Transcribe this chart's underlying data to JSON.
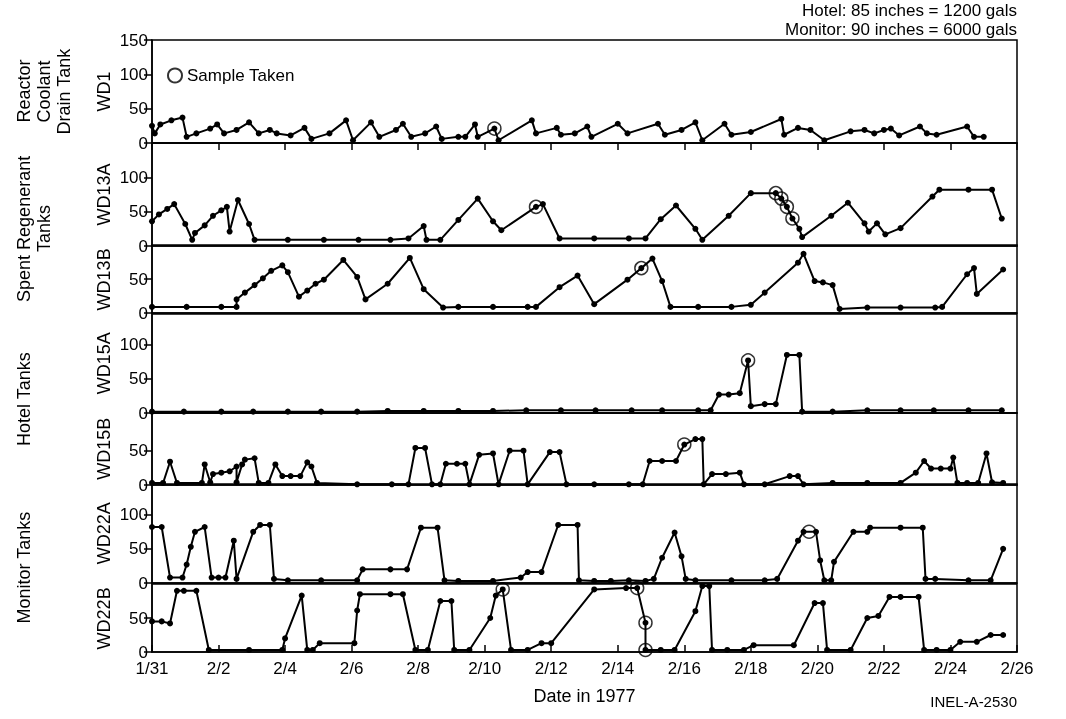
{
  "chart_data": [
    {
      "type": "line",
      "title": "Reactor Coolant Drain Tank",
      "ylabel": "WD1",
      "annotations": [
        "Hotel: 85 inches = 1200 gals",
        "Monitor: 90 inches = 6000 gals"
      ],
      "legend": "top left",
      "marker": "circle",
      "line_style": "solid",
      "tick_labels": "y",
      "xlim": [
        "1977-01-31",
        "1977-02-26"
      ],
      "xticks": [
        {
          "value": "1977-01-31",
          "label": null
        },
        {
          "value": "1977-02-02",
          "label": null
        },
        {
          "value": "1977-02-04",
          "label": null
        },
        {
          "value": "1977-02-06",
          "label": null
        },
        {
          "value": "1977-02-08",
          "label": null
        },
        {
          "value": "1977-02-10",
          "label": null
        },
        {
          "value": "1977-02-12",
          "label": null
        },
        {
          "value": "1977-02-14",
          "label": null
        },
        {
          "value": "1977-02-16",
          "label": null
        },
        {
          "value": "1977-02-18",
          "label": null
        },
        {
          "value": "1977-02-20",
          "label": null
        },
        {
          "value": "1977-02-22",
          "label": null
        },
        {
          "value": "1977-02-24",
          "label": null
        },
        {
          "value": "1977-02-26",
          "label": null
        }
      ],
      "ylim": [
        0,
        150
      ],
      "yticks": [
        0,
        50,
        100,
        150
      ],
      "series": [
        {
          "color": "#000000",
          "x": [
            "1977-01-31T00:00",
            "1977-01-31T02:00",
            "1977-01-31T06:00",
            "1977-01-31T14:00",
            "1977-01-31T22:00",
            "1977-02-01T01:00",
            "1977-02-01T08:00",
            "1977-02-01T18:00",
            "1977-02-01T23:00",
            "1977-02-02T04:00",
            "1977-02-02T13:00",
            "1977-02-02T22:00",
            "1977-02-03T05:00",
            "1977-02-03T13:00",
            "1977-02-03T18:00",
            "1977-02-04T04:00",
            "1977-02-04T14:00",
            "1977-02-04T19:00",
            "1977-02-05T08:00",
            "1977-02-05T20:00",
            "1977-02-06T01:00",
            "1977-02-06T14:00",
            "1977-02-06T20:00",
            "1977-02-07T08:00",
            "1977-02-07T13:00",
            "1977-02-07T19:00",
            "1977-02-08T05:00",
            "1977-02-08T13:00",
            "1977-02-08T17:00",
            "1977-02-09T05:00",
            "1977-02-09T10:00",
            "1977-02-09T17:00",
            "1977-02-09T19:00",
            "1977-02-10T07:00",
            "1977-02-10T10:00",
            "1977-02-11T10:00",
            "1977-02-11T13:00",
            "1977-02-12T04:00",
            "1977-02-12T07:00",
            "1977-02-12T17:00",
            "1977-02-13T02:00",
            "1977-02-13T05:00",
            "1977-02-14T00:00",
            "1977-02-14T07:00",
            "1977-02-15T05:00",
            "1977-02-15T10:00",
            "1977-02-15T22:00",
            "1977-02-16T08:00",
            "1977-02-16T13:00",
            "1977-02-17T05:00",
            "1977-02-17T10:00",
            "1977-02-18T00:00",
            "1977-02-18T22:00",
            "1977-02-19T00:00",
            "1977-02-19T10:00",
            "1977-02-19T19:00",
            "1977-02-20T05:00",
            "1977-02-21T00:00",
            "1977-02-21T10:00",
            "1977-02-21T17:00",
            "1977-02-22T00:00",
            "1977-02-22T05:00",
            "1977-02-22T11:00",
            "1977-02-23T02:00",
            "1977-02-23T07:00",
            "1977-02-23T14:00",
            "1977-02-24T12:00",
            "1977-02-24T17:00",
            "1977-02-25T00:00"
          ],
          "values": [
            25,
            14,
            27,
            33,
            37,
            9,
            14,
            21,
            27,
            14,
            19,
            30,
            14,
            19,
            14,
            11,
            22,
            6,
            14,
            33,
            4,
            30,
            9,
            19,
            28,
            9,
            14,
            24,
            6,
            9,
            9,
            27,
            9,
            21,
            4,
            33,
            14,
            22,
            12,
            14,
            24,
            9,
            28,
            14,
            28,
            12,
            19,
            30,
            4,
            28,
            12,
            16,
            35,
            12,
            22,
            19,
            4,
            17,
            19,
            14,
            19,
            21,
            11,
            24,
            14,
            12,
            24,
            9,
            9
          ]
        },
        {
          "name": "Sample Taken",
          "type": "scatter",
          "color": "#000000",
          "x": [
            "1977-02-10T07:00"
          ],
          "values": [
            21
          ]
        }
      ]
    },
    {
      "type": "line",
      "title": "Spent Regenerant Tanks",
      "ylabel": "WD13A",
      "marker": "circle",
      "line_style": "solid",
      "tick_labels": "y",
      "xlim": [
        "1977-01-31",
        "1977-02-26"
      ],
      "ylim": [
        0,
        150
      ],
      "yticks": [
        0,
        50,
        100
      ],
      "series": [
        {
          "color": "#000000",
          "x": [
            "1977-01-31T00:00",
            "1977-01-31T05:00",
            "1977-01-31T11:00",
            "1977-01-31T16:00",
            "1977-02-01T00:00",
            "1977-02-01T05:00",
            "1977-02-01T07:00",
            "1977-02-01T14:00",
            "1977-02-01T20:00",
            "1977-02-02T02:00",
            "1977-02-02T06:00",
            "1977-02-02T08:00",
            "1977-02-02T14:00",
            "1977-02-02T22:00",
            "1977-02-03T02:00",
            "1977-02-04T02:00",
            "1977-02-05T04:00",
            "1977-02-06T05:00",
            "1977-02-07T04:00",
            "1977-02-07T17:00",
            "1977-02-08T04:00",
            "1977-02-08T06:00",
            "1977-02-08T16:00",
            "1977-02-09T05:00",
            "1977-02-09T19:00",
            "1977-02-10T06:00",
            "1977-02-10T12:00",
            "1977-02-11T13:00",
            "1977-02-11T18:00",
            "1977-02-12T06:00",
            "1977-02-13T07:00",
            "1977-02-14T08:00",
            "1977-02-14T20:00",
            "1977-02-15T07:00",
            "1977-02-15T18:00",
            "1977-02-16T08:00",
            "1977-02-16T13:00",
            "1977-02-17T08:00",
            "1977-02-18T00:00",
            "1977-02-18T18:00",
            "1977-02-18T22:00",
            "1977-02-19T02:00",
            "1977-02-19T06:00",
            "1977-02-19T11:00",
            "1977-02-19T13:00",
            "1977-02-20T10:00",
            "1977-02-20T22:00",
            "1977-02-21T10:00",
            "1977-02-21T13:00",
            "1977-02-21T19:00",
            "1977-02-22T01:00",
            "1977-02-22T12:00",
            "1977-02-23T11:00",
            "1977-02-23T16:00",
            "1977-02-24T13:00",
            "1977-02-25T06:00",
            "1977-02-25T13:00"
          ],
          "values": [
            36,
            46,
            54,
            61,
            32,
            9,
            19,
            30,
            44,
            52,
            57,
            21,
            67,
            32,
            9,
            9,
            9,
            9,
            9,
            11,
            29,
            9,
            9,
            38,
            69,
            36,
            23,
            57,
            61,
            11,
            11,
            11,
            11,
            39,
            59,
            25,
            9,
            44,
            77,
            77,
            69,
            57,
            40,
            25,
            13,
            44,
            63,
            33,
            21,
            33,
            17,
            26,
            72,
            82,
            82,
            82,
            40
          ]
        },
        {
          "type": "scatter",
          "color": "#000000",
          "x": [
            "1977-02-11T13:00",
            "1977-02-18T18:00",
            "1977-02-18T22:00",
            "1977-02-19T02:00",
            "1977-02-19T06:00"
          ],
          "values": [
            57,
            77,
            69,
            57,
            40
          ]
        }
      ]
    },
    {
      "type": "line",
      "ylabel": "WD13B",
      "marker": "circle",
      "line_style": "solid",
      "tick_labels": "y",
      "xlim": [
        "1977-01-31",
        "1977-02-26"
      ],
      "ylim": [
        0,
        100
      ],
      "yticks": [
        0,
        50
      ],
      "series": [
        {
          "color": "#000000",
          "x": [
            "1977-01-31T00:00",
            "1977-02-01T01:00",
            "1977-02-02T02:00",
            "1977-02-02T13:00",
            "1977-02-02T13:00",
            "1977-02-02T19:00",
            "1977-02-03T02:00",
            "1977-02-03T08:00",
            "1977-02-03T14:00",
            "1977-02-03T22:00",
            "1977-02-04T02:00",
            "1977-02-04T10:00",
            "1977-02-04T16:00",
            "1977-02-04T22:00",
            "1977-02-05T04:00",
            "1977-02-05T18:00",
            "1977-02-06T04:00",
            "1977-02-06T10:00",
            "1977-02-07T02:00",
            "1977-02-07T18:00",
            "1977-02-08T04:00",
            "1977-02-08T18:00",
            "1977-02-09T05:00",
            "1977-02-10T06:00",
            "1977-02-11T07:00",
            "1977-02-11T13:00",
            "1977-02-12T06:00",
            "1977-02-12T19:00",
            "1977-02-13T07:00",
            "1977-02-14T07:00",
            "1977-02-14T17:00",
            "1977-02-15T01:00",
            "1977-02-15T08:00",
            "1977-02-15T14:00",
            "1977-02-16T10:00",
            "1977-02-17T10:00",
            "1977-02-18T00:00",
            "1977-02-18T10:00",
            "1977-02-19T10:00",
            "1977-02-19T14:00",
            "1977-02-19T22:00",
            "1977-02-20T04:00",
            "1977-02-20T11:00",
            "1977-02-20T16:00",
            "1977-02-21T12:00",
            "1977-02-22T12:00",
            "1977-02-23T13:00",
            "1977-02-23T18:00",
            "1977-02-24T12:00",
            "1977-02-24T17:00",
            "1977-02-24T19:00",
            "1977-02-25T14:00"
          ],
          "values": [
            9,
            9,
            9,
            9,
            20,
            30,
            41,
            51,
            62,
            70,
            60,
            24,
            33,
            43,
            49,
            78,
            53,
            20,
            43,
            81,
            35,
            8,
            9,
            9,
            9,
            9,
            38,
            55,
            13,
            49,
            66,
            80,
            47,
            9,
            9,
            9,
            12,
            30,
            74,
            87,
            47,
            45,
            41,
            6,
            8,
            8,
            8,
            9,
            57,
            66,
            28,
            64
          ]
        },
        {
          "type": "scatter",
          "color": "#000000",
          "x": [
            "1977-02-14T17:00"
          ],
          "values": [
            66
          ]
        }
      ]
    },
    {
      "type": "line",
      "title": "Hotel Tanks",
      "ylabel": "WD15A",
      "marker": "circle",
      "line_style": "solid",
      "tick_labels": "y",
      "xlim": [
        "1977-01-31",
        "1977-02-26"
      ],
      "ylim": [
        0,
        145
      ],
      "yticks": [
        0,
        50,
        100
      ],
      "series": [
        {
          "color": "#000000",
          "x": [
            "1977-01-31T00:00",
            "1977-01-31T23:00",
            "1977-02-02T02:00",
            "1977-02-03T01:00",
            "1977-02-04T02:00",
            "1977-02-05T02:00",
            "1977-02-06T04:00",
            "1977-02-07T02:00",
            "1977-02-08T04:00",
            "1977-02-09T05:00",
            "1977-02-10T06:00",
            "1977-02-11T06:00",
            "1977-02-12T07:00",
            "1977-02-13T08:00",
            "1977-02-14T10:00",
            "1977-02-15T08:00",
            "1977-02-16T10:00",
            "1977-02-16T19:00",
            "1977-02-17T01:00",
            "1977-02-17T08:00",
            "1977-02-17T16:00",
            "1977-02-17T22:00",
            "1977-02-18T00:00",
            "1977-02-18T10:00",
            "1977-02-18T18:00",
            "1977-02-19T02:00",
            "1977-02-19T11:00",
            "1977-02-19T13:00",
            "1977-02-20T11:00",
            "1977-02-21T12:00",
            "1977-02-22T12:00",
            "1977-02-23T12:00",
            "1977-02-24T13:00",
            "1977-02-25T13:00"
          ],
          "values": [
            2,
            2,
            2,
            2,
            2,
            2,
            2,
            3,
            3,
            3,
            3,
            4,
            4,
            4,
            4,
            4,
            4,
            4,
            27,
            27,
            29,
            77,
            10,
            13,
            13,
            85,
            85,
            2,
            2,
            4,
            4,
            4,
            4,
            4
          ]
        },
        {
          "type": "scatter",
          "color": "#000000",
          "x": [
            "1977-02-17T22:00"
          ],
          "values": [
            77
          ]
        }
      ]
    },
    {
      "type": "line",
      "ylabel": "WD15B",
      "marker": "circle",
      "line_style": "solid",
      "tick_labels": "y",
      "xlim": [
        "1977-01-31",
        "1977-02-26"
      ],
      "ylim": [
        0,
        105
      ],
      "yticks": [
        0,
        50
      ],
      "series": [
        {
          "color": "#000000",
          "x": [
            "1977-01-31T00:00",
            "1977-01-31T08:00",
            "1977-01-31T13:00",
            "1977-01-31T18:00",
            "1977-02-01T12:00",
            "1977-02-01T14:00",
            "1977-02-01T18:00",
            "1977-02-01T20:00",
            "1977-02-02T02:00",
            "1977-02-02T08:00",
            "1977-02-02T13:00",
            "1977-02-02T13:00",
            "1977-02-02T17:00",
            "1977-02-02T19:00",
            "1977-02-03T02:00",
            "1977-02-03T05:00",
            "1977-02-03T12:00",
            "1977-02-03T17:00",
            "1977-02-03T22:00",
            "1977-02-04T04:00",
            "1977-02-04T11:00",
            "1977-02-04T16:00",
            "1977-02-04T19:00",
            "1977-02-04T23:00",
            "1977-02-06T04:00",
            "1977-02-07T05:00",
            "1977-02-07T17:00",
            "1977-02-07T22:00",
            "1977-02-08T05:00",
            "1977-02-08T10:00",
            "1977-02-08T16:00",
            "1977-02-08T20:00",
            "1977-02-09T04:00",
            "1977-02-09T10:00",
            "1977-02-09T13:00",
            "1977-02-09T20:00",
            "1977-02-10T06:00",
            "1977-02-10T10:00",
            "1977-02-10T18:00",
            "1977-02-11T04:00",
            "1977-02-11T07:00",
            "1977-02-11T23:00",
            "1977-02-12T06:00",
            "1977-02-12T11:00",
            "1977-02-13T07:00",
            "1977-02-14T08:00",
            "1977-02-14T18:00",
            "1977-02-14T23:00",
            "1977-02-15T08:00",
            "1977-02-15T18:00",
            "1977-02-16T00:00",
            "1977-02-16T08:00",
            "1977-02-16T13:00",
            "1977-02-16T14:00",
            "1977-02-16T20:00",
            "1977-02-17T06:00",
            "1977-02-17T16:00",
            "1977-02-17T19:00",
            "1977-02-18T10:00",
            "1977-02-19T04:00",
            "1977-02-19T10:00",
            "1977-02-19T14:00",
            "1977-02-20T11:00",
            "1977-02-21T12:00",
            "1977-02-22T12:00",
            "1977-02-22T23:00",
            "1977-02-23T05:00",
            "1977-02-23T10:00",
            "1977-02-23T17:00",
            "1977-02-24T00:00",
            "1977-02-24T02:00",
            "1977-02-24T05:00",
            "1977-02-24T12:00",
            "1977-02-24T20:00",
            "1977-02-25T02:00",
            "1977-02-25T06:00",
            "1977-02-25T14:00"
          ],
          "values": [
            3,
            3,
            34,
            3,
            3,
            30,
            4,
            16,
            18,
            20,
            27,
            4,
            30,
            37,
            39,
            3,
            3,
            30,
            13,
            13,
            13,
            33,
            27,
            3,
            1,
            1,
            1,
            54,
            54,
            1,
            1,
            31,
            31,
            31,
            1,
            44,
            46,
            1,
            50,
            50,
            1,
            48,
            48,
            1,
            1,
            1,
            1,
            35,
            35,
            35,
            59,
            67,
            67,
            1,
            16,
            16,
            18,
            1,
            1,
            13,
            13,
            1,
            3,
            3,
            3,
            18,
            35,
            24,
            24,
            24,
            40,
            3,
            3,
            3,
            46,
            4,
            3
          ]
        },
        {
          "type": "scatter",
          "color": "#000000",
          "x": [
            "1977-02-16T00:00"
          ],
          "values": [
            59
          ]
        }
      ]
    },
    {
      "type": "line",
      "title": "Monitor Tanks",
      "ylabel": "WD22A",
      "marker": "circle",
      "line_style": "solid",
      "tick_labels": "y",
      "xlim": [
        "1977-01-31",
        "1977-02-26"
      ],
      "ylim": [
        0,
        145
      ],
      "yticks": [
        0,
        50,
        100
      ],
      "series": [
        {
          "color": "#000000",
          "x": [
            "1977-01-31T00:00",
            "1977-01-31T07:00",
            "1977-01-31T13:00",
            "1977-01-31T22:00",
            "1977-02-01T01:00",
            "1977-02-01T04:00",
            "1977-02-01T07:00",
            "1977-02-01T14:00",
            "1977-02-01T19:00",
            "1977-02-02T00:00",
            "1977-02-02T05:00",
            "1977-02-02T11:00",
            "1977-02-02T13:00",
            "1977-02-03T01:00",
            "1977-02-03T06:00",
            "1977-02-03T13:00",
            "1977-02-03T16:00",
            "1977-02-04T02:00",
            "1977-02-05T02:00",
            "1977-02-06T04:00",
            "1977-02-06T08:00",
            "1977-02-07T04:00",
            "1977-02-07T16:00",
            "1977-02-08T02:00",
            "1977-02-08T14:00",
            "1977-02-08T19:00",
            "1977-02-09T05:00",
            "1977-02-10T06:00",
            "1977-02-11T02:00",
            "1977-02-11T07:00",
            "1977-02-11T17:00",
            "1977-02-12T05:00",
            "1977-02-12T19:00",
            "1977-02-12T20:00",
            "1977-02-13T07:00",
            "1977-02-13T19:00",
            "1977-02-14T08:00",
            "1977-02-14T20:00",
            "1977-02-15T02:00",
            "1977-02-15T08:00",
            "1977-02-15T17:00",
            "1977-02-15T22:00",
            "1977-02-16T01:00",
            "1977-02-16T08:00",
            "1977-02-17T10:00",
            "1977-02-18T10:00",
            "1977-02-18T19:00",
            "1977-02-19T10:00",
            "1977-02-19T14:00",
            "1977-02-19T23:00",
            "1977-02-20T02:00",
            "1977-02-20T05:00",
            "1977-02-20T10:00",
            "1977-02-20T12:00",
            "1977-02-21T02:00",
            "1977-02-21T12:00",
            "1977-02-21T14:00",
            "1977-02-22T12:00",
            "1977-02-23T04:00",
            "1977-02-23T06:00",
            "1977-02-23T13:00",
            "1977-02-24T13:00",
            "1977-02-25T05:00",
            "1977-02-25T14:00"
          ],
          "values": [
            82,
            82,
            8,
            8,
            27,
            53,
            75,
            82,
            8,
            8,
            8,
            62,
            6,
            75,
            85,
            85,
            6,
            4,
            4,
            4,
            20,
            20,
            20,
            81,
            81,
            4,
            3,
            3,
            8,
            16,
            16,
            85,
            85,
            4,
            3,
            3,
            4,
            3,
            6,
            37,
            74,
            39,
            6,
            4,
            4,
            4,
            6,
            62,
            75,
            75,
            33,
            4,
            4,
            31,
            75,
            75,
            81,
            81,
            81,
            6,
            6,
            4,
            4,
            50
          ]
        },
        {
          "type": "scatter",
          "color": "#000000",
          "x": [
            "1977-02-19T18:00"
          ],
          "values": [
            75
          ]
        }
      ]
    },
    {
      "type": "line",
      "ylabel": "WD22B",
      "xlabel": "Date in 1977",
      "annotations": [
        "INEL-A-2530"
      ],
      "marker": "circle",
      "line_style": "solid",
      "xlim": [
        "1977-01-31",
        "1977-02-26"
      ],
      "xticks": [
        {
          "value": "1977-01-31",
          "label": "1/31"
        },
        {
          "value": "1977-02-02",
          "label": "2/2"
        },
        {
          "value": "1977-02-04",
          "label": "2/4"
        },
        {
          "value": "1977-02-06",
          "label": "2/6"
        },
        {
          "value": "1977-02-08",
          "label": "2/8"
        },
        {
          "value": "1977-02-10",
          "label": "2/10"
        },
        {
          "value": "1977-02-12",
          "label": "2/12"
        },
        {
          "value": "1977-02-14",
          "label": "2/14"
        },
        {
          "value": "1977-02-16",
          "label": "2/16"
        },
        {
          "value": "1977-02-18",
          "label": "2/18"
        },
        {
          "value": "1977-02-20",
          "label": "2/20"
        },
        {
          "value": "1977-02-22",
          "label": "2/22"
        },
        {
          "value": "1977-02-24",
          "label": "2/24"
        },
        {
          "value": "1977-02-26",
          "label": "2/26"
        }
      ],
      "ylim": [
        0,
        100
      ],
      "yticks": [
        0,
        50
      ],
      "series": [
        {
          "color": "#000000",
          "x": [
            "1977-01-31T00:00",
            "1977-01-31T07:00",
            "1977-01-31T13:00",
            "1977-01-31T18:00",
            "1977-01-31T23:00",
            "1977-02-01T08:00",
            "1977-02-01T17:00",
            "1977-02-02T22:00",
            "1977-02-03T22:00",
            "1977-02-04T00:00",
            "1977-02-04T12:00",
            "1977-02-04T16:00",
            "1977-02-04T20:00",
            "1977-02-05T01:00",
            "1977-02-06T02:00",
            "1977-02-06T04:00",
            "1977-02-06T06:00",
            "1977-02-07T04:00",
            "1977-02-07T13:00",
            "1977-02-07T22:00",
            "1977-02-08T07:00",
            "1977-02-08T16:00",
            "1977-02-09T00:00",
            "1977-02-09T02:00",
            "1977-02-09T13:00",
            "1977-02-10T04:00",
            "1977-02-10T08:00",
            "1977-02-10T13:00",
            "1977-02-10T19:00",
            "1977-02-11T07:00",
            "1977-02-11T17:00",
            "1977-02-12T00:00",
            "1977-02-13T07:00",
            "1977-02-14T06:00",
            "1977-02-14T14:00",
            "1977-02-14T20:00",
            "1977-02-14T20:00",
            "1977-02-15T07:00",
            "1977-02-15T17:00",
            "1977-02-16T08:00",
            "1977-02-16T13:00",
            "1977-02-16T18:00",
            "1977-02-16T20:00",
            "1977-02-17T07:00",
            "1977-02-17T19:00",
            "1977-02-18T02:00",
            "1977-02-19T07:00",
            "1977-02-19T22:00",
            "1977-02-20T04:00",
            "1977-02-20T07:00",
            "1977-02-21T00:00",
            "1977-02-21T12:00",
            "1977-02-21T20:00",
            "1977-02-22T04:00",
            "1977-02-22T12:00",
            "1977-02-23T01:00",
            "1977-02-23T05:00",
            "1977-02-23T14:00",
            "1977-02-24T00:00",
            "1977-02-24T07:00",
            "1977-02-24T19:00",
            "1977-02-25T05:00",
            "1977-02-25T14:00"
          ],
          "values": [
            45,
            45,
            42,
            90,
            90,
            90,
            3,
            3,
            3,
            20,
            83,
            3,
            3,
            13,
            13,
            61,
            85,
            85,
            85,
            3,
            3,
            75,
            75,
            3,
            3,
            50,
            83,
            92,
            3,
            3,
            13,
            13,
            92,
            94,
            94,
            43,
            3,
            3,
            3,
            60,
            97,
            97,
            3,
            3,
            3,
            10,
            10,
            72,
            72,
            3,
            3,
            50,
            53,
            81,
            81,
            81,
            3,
            3,
            3,
            15,
            15,
            25,
            25
          ]
        },
        {
          "type": "scatter",
          "color": "#000000",
          "x": [
            "1977-02-10T13:00",
            "1977-02-14T14:00",
            "1977-02-14T20:00",
            "1977-02-14T20:00"
          ],
          "values": [
            92,
            94,
            43,
            3
          ]
        }
      ]
    }
  ]
}
